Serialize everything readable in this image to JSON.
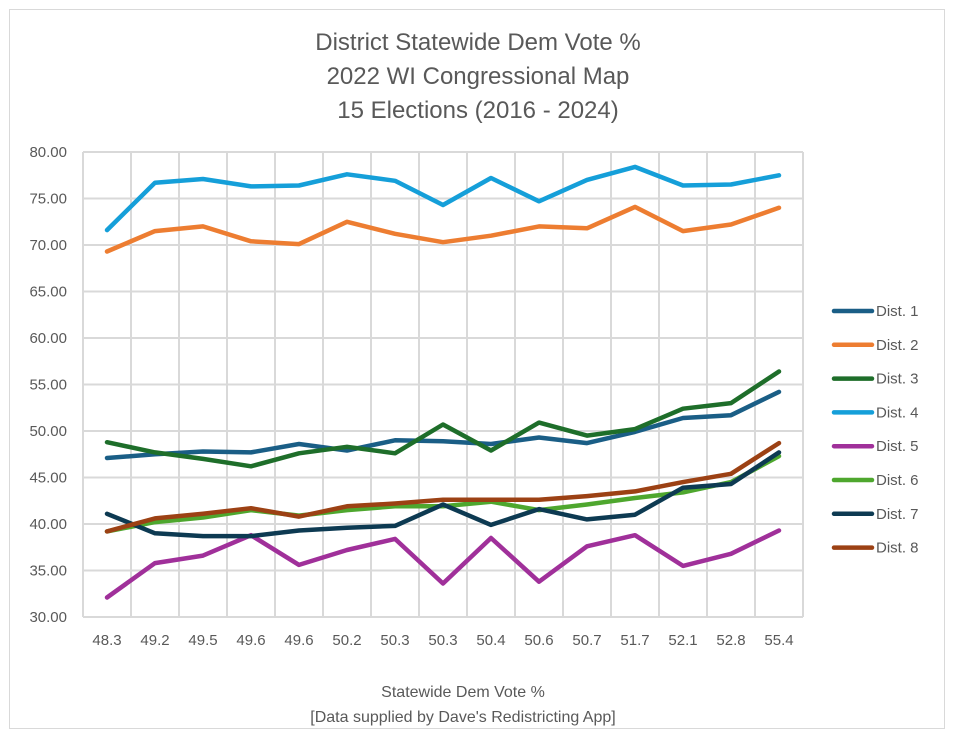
{
  "chart_data": {
    "type": "line",
    "title": [
      "District Statewide Dem Vote %",
      "2022 WI Congressional Map",
      "15 Elections (2016 - 2024)"
    ],
    "xlabel": [
      "Statewide Dem Vote %",
      "[Data supplied by Dave's Redistricting App]"
    ],
    "ylabel": "",
    "ylim": [
      30,
      80
    ],
    "ytick_step": 5,
    "yticks": [
      "30.00",
      "35.00",
      "40.00",
      "45.00",
      "50.00",
      "55.00",
      "60.00",
      "65.00",
      "70.00",
      "75.00",
      "80.00"
    ],
    "grid": true,
    "legend_position": "right",
    "categories": [
      "48.3",
      "49.2",
      "49.5",
      "49.6",
      "49.6",
      "50.2",
      "50.3",
      "50.3",
      "50.4",
      "50.6",
      "50.7",
      "51.7",
      "52.1",
      "52.8",
      "55.4"
    ],
    "series": [
      {
        "name": "Dist. 1",
        "color": "#1a5e86",
        "values": [
          47.1,
          47.5,
          47.8,
          47.7,
          48.6,
          47.9,
          49.0,
          48.9,
          48.6,
          49.3,
          48.7,
          49.9,
          51.4,
          51.7,
          54.2
        ]
      },
      {
        "name": "Dist. 2",
        "color": "#ed7d31",
        "values": [
          69.3,
          71.5,
          72.0,
          70.4,
          70.1,
          72.5,
          71.2,
          70.3,
          71.0,
          72.0,
          71.8,
          74.1,
          71.5,
          72.2,
          74.0
        ]
      },
      {
        "name": "Dist. 3",
        "color": "#1e6e2a",
        "values": [
          48.8,
          47.7,
          47.0,
          46.2,
          47.6,
          48.3,
          47.6,
          50.7,
          47.9,
          50.9,
          49.5,
          50.2,
          52.4,
          53.0,
          56.4
        ]
      },
      {
        "name": "Dist. 4",
        "color": "#159fd9",
        "values": [
          71.6,
          76.7,
          77.1,
          76.3,
          76.4,
          77.6,
          76.9,
          74.3,
          77.2,
          74.7,
          77.0,
          78.4,
          76.4,
          76.5,
          77.5
        ]
      },
      {
        "name": "Dist. 5",
        "color": "#a0309a",
        "values": [
          32.1,
          35.8,
          36.6,
          38.8,
          35.6,
          37.2,
          38.4,
          33.6,
          38.5,
          33.8,
          37.6,
          38.8,
          35.5,
          36.8,
          39.3
        ]
      },
      {
        "name": "Dist. 6",
        "color": "#4ea72e",
        "values": [
          39.2,
          40.2,
          40.7,
          41.5,
          40.9,
          41.5,
          41.9,
          41.9,
          42.4,
          41.5,
          42.1,
          42.8,
          43.4,
          44.5,
          47.3
        ]
      },
      {
        "name": "Dist. 7",
        "color": "#0d3a52",
        "values": [
          41.1,
          39.0,
          38.7,
          38.7,
          39.3,
          39.6,
          39.8,
          42.1,
          39.9,
          41.6,
          40.5,
          41.0,
          43.9,
          44.3,
          47.7
        ]
      },
      {
        "name": "Dist. 8",
        "color": "#9c4114",
        "values": [
          39.2,
          40.6,
          41.1,
          41.7,
          40.8,
          41.9,
          42.2,
          42.6,
          42.6,
          42.6,
          43.0,
          43.5,
          44.5,
          45.4,
          48.7
        ]
      }
    ]
  }
}
